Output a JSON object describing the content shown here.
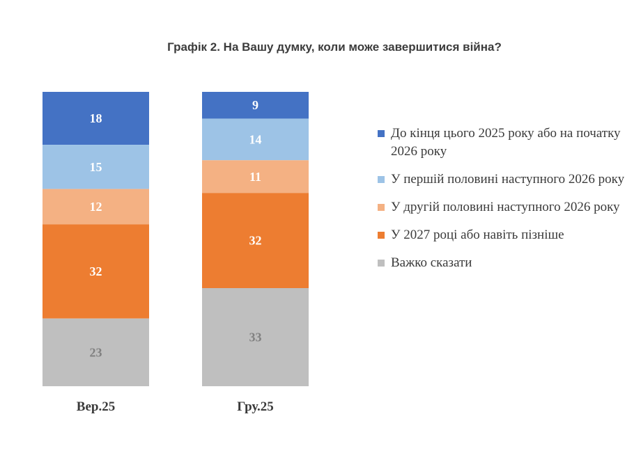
{
  "chart_data": {
    "type": "bar",
    "stacked": true,
    "title": "Графік 2. На Вашу думку, коли може завершитися війна?",
    "categories": [
      "Вер.25",
      "Гру.25"
    ],
    "series": [
      {
        "name": "До кінця цього 2025 року або на початку 2026 року",
        "color": "#4472c4",
        "label_color": "#ffffff",
        "values": [
          18,
          9
        ]
      },
      {
        "name": "У першій половині наступного 2026 року",
        "color": "#9dc3e6",
        "label_color": "#ffffff",
        "values": [
          15,
          14
        ]
      },
      {
        "name": "У другій половині наступного 2026 року",
        "color": "#f4b183",
        "label_color": "#ffffff",
        "values": [
          12,
          11
        ]
      },
      {
        "name": "У 2027 році або навіть пізніше",
        "color": "#ed7d31",
        "label_color": "#ffffff",
        "values": [
          32,
          32
        ]
      },
      {
        "name": "Важко сказати",
        "color": "#bfbfbf",
        "label_color": "#808080",
        "values": [
          23,
          33
        ]
      }
    ],
    "legend": "right",
    "grid": false
  }
}
